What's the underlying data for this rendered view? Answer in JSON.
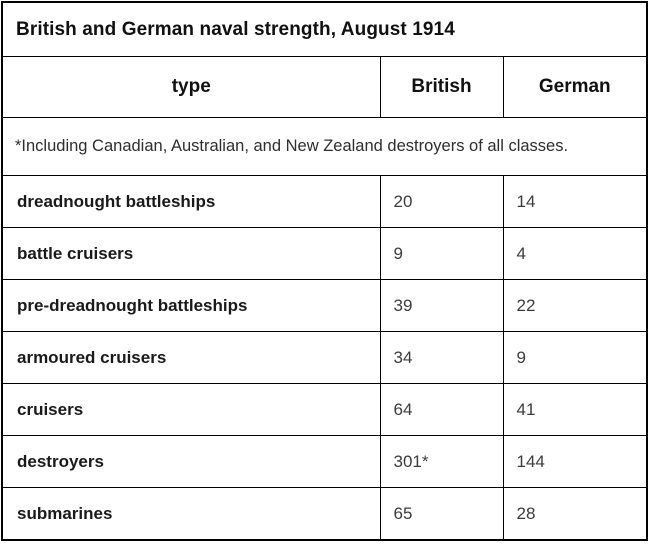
{
  "page": {
    "background": "#ffffff",
    "border_color": "#000000"
  },
  "table": {
    "title": "British and German naval strength, August 1914",
    "headers": {
      "type": "type",
      "british": "British",
      "german": "German"
    },
    "footnote": "*Including Canadian, Australian, and New Zealand destroyers of all classes.",
    "rows": [
      {
        "label": "dreadnought battleships",
        "british": "20",
        "german": "14"
      },
      {
        "label": "battle cruisers",
        "british": "9",
        "german": "4"
      },
      {
        "label": "pre-dreadnought battleships",
        "british": "39",
        "german": "22"
      },
      {
        "label": "armoured cruisers",
        "british": "34",
        "german": "9"
      },
      {
        "label": "cruisers",
        "british": "64",
        "german": "41"
      },
      {
        "label": "destroyers",
        "british": "301*",
        "german": "144"
      },
      {
        "label": "submarines",
        "british": "65",
        "german": "28"
      }
    ]
  },
  "chart_data": {
    "type": "table",
    "title": "British and German naval strength, August 1914",
    "columns": [
      "type",
      "British",
      "German"
    ],
    "footnote": "*Including Canadian, Australian, and New Zealand destroyers of all classes.",
    "rows": [
      [
        "dreadnought battleships",
        "20",
        "14"
      ],
      [
        "battle cruisers",
        "9",
        "4"
      ],
      [
        "pre-dreadnought battleships",
        "39",
        "22"
      ],
      [
        "armoured cruisers",
        "34",
        "9"
      ],
      [
        "cruisers",
        "64",
        "41"
      ],
      [
        "destroyers",
        "301*",
        "144"
      ],
      [
        "submarines",
        "65",
        "28"
      ]
    ]
  }
}
